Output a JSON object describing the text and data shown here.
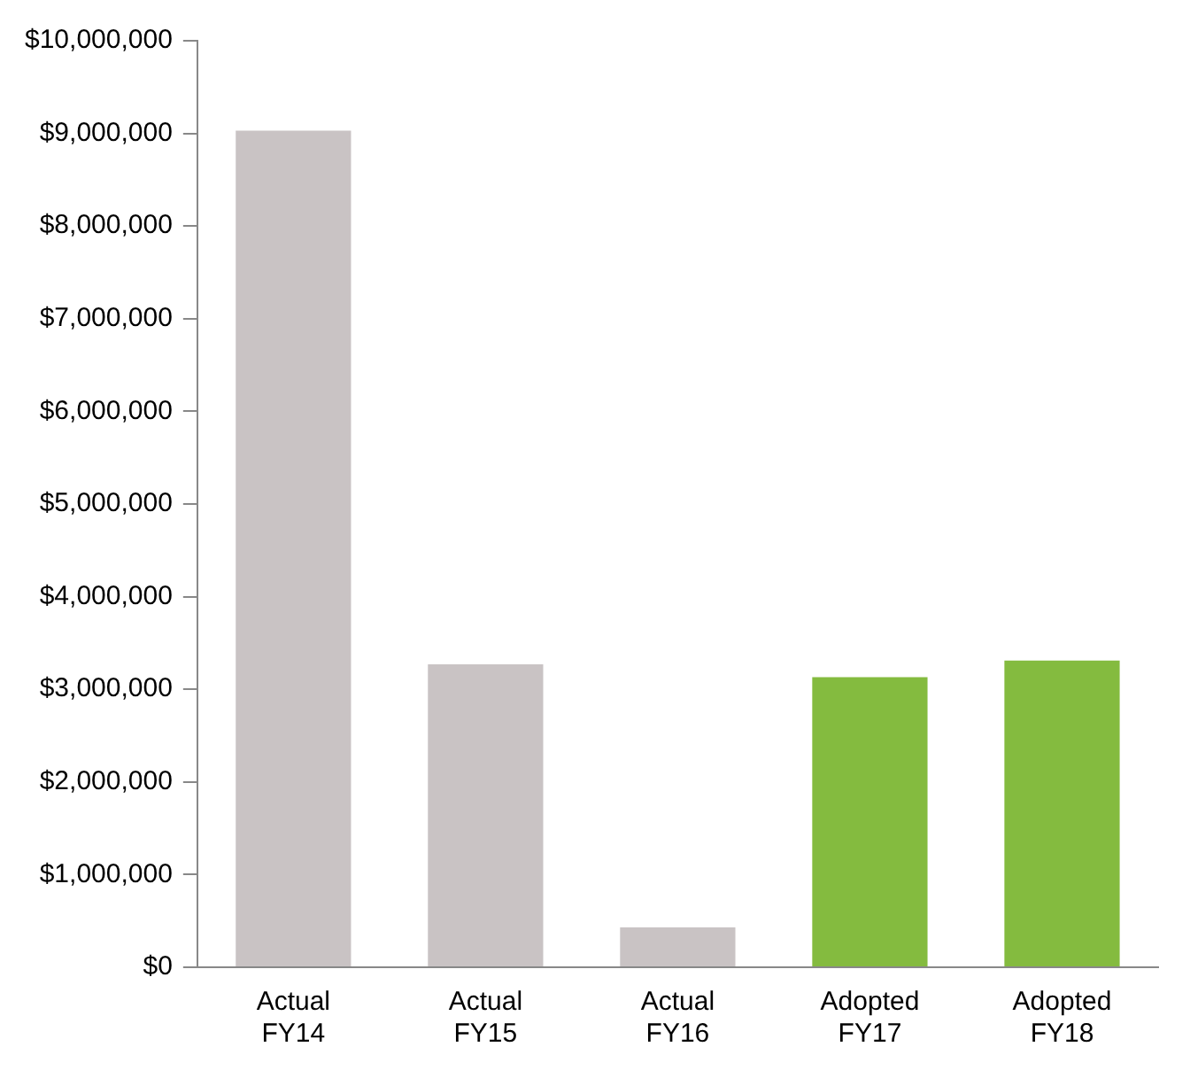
{
  "chart_data": {
    "type": "bar",
    "categories": [
      "Actual FY14",
      "Actual FY15",
      "Actual FY16",
      "Adopted FY17",
      "Adopted FY18"
    ],
    "values": [
      9030000,
      3270000,
      430000,
      3130000,
      3310000
    ],
    "colors": [
      "#c9c3c4",
      "#c9c3c4",
      "#c9c3c4",
      "#84bb3f",
      "#84bb3f"
    ],
    "ylim": [
      0,
      10000000
    ],
    "yticks": [
      {
        "value": 0,
        "label": "$0"
      },
      {
        "value": 1000000,
        "label": "$1,000,000"
      },
      {
        "value": 2000000,
        "label": "$2,000,000"
      },
      {
        "value": 3000000,
        "label": "$3,000,000"
      },
      {
        "value": 4000000,
        "label": "$4,000,000"
      },
      {
        "value": 5000000,
        "label": "$5,000,000"
      },
      {
        "value": 6000000,
        "label": "$6,000,000"
      },
      {
        "value": 7000000,
        "label": "$7,000,000"
      },
      {
        "value": 8000000,
        "label": "$8,000,000"
      },
      {
        "value": 9000000,
        "label": "$9,000,000"
      },
      {
        "value": 10000000,
        "label": "$10,000,000"
      }
    ],
    "grid": false,
    "legend": false
  }
}
